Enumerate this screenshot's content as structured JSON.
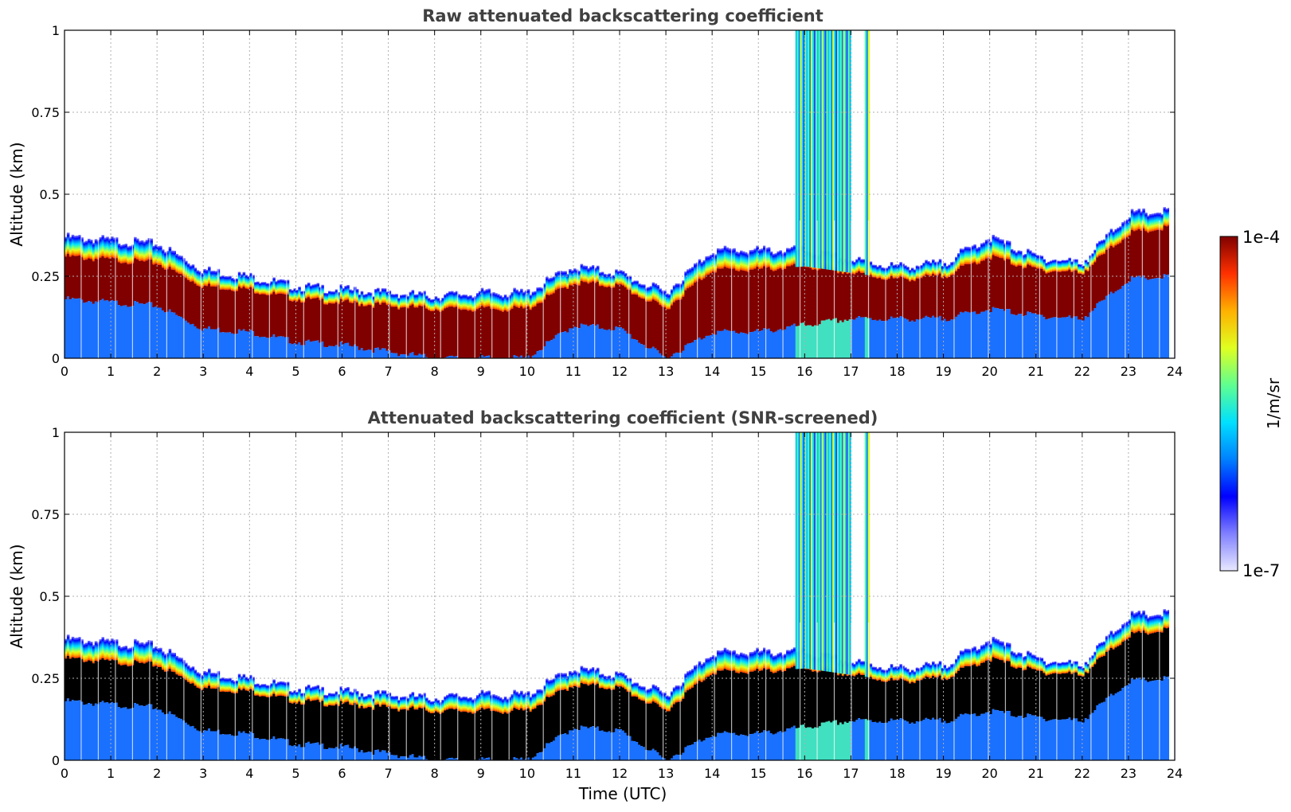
{
  "chart_data": [
    {
      "type": "heatmap",
      "title": "Raw attenuated backscattering coefficient",
      "xlabel": "",
      "ylabel": "Altitude (km)",
      "xlim": [
        0,
        24
      ],
      "ylim": [
        0,
        1
      ],
      "x_ticks": [
        "0",
        "1",
        "2",
        "3",
        "4",
        "5",
        "6",
        "7",
        "8",
        "9",
        "10",
        "11",
        "12",
        "13",
        "14",
        "15",
        "16",
        "17",
        "18",
        "19",
        "20",
        "21",
        "22",
        "23",
        "24"
      ],
      "y_ticks": [
        "0",
        "0.25",
        "0.5",
        "0.75",
        "1"
      ],
      "grid": true,
      "screened": false,
      "layer_top_km": [
        0.37,
        0.36,
        0.35,
        0.27,
        0.25,
        0.22,
        0.21,
        0.2,
        0.19,
        0.2,
        0.2,
        0.28,
        0.26,
        0.2,
        0.33,
        0.33,
        0.33,
        0.3,
        0.28,
        0.29,
        0.37,
        0.31,
        0.29,
        0.44,
        0.45
      ],
      "dense_top_km": [
        0.31,
        0.3,
        0.29,
        0.22,
        0.21,
        0.18,
        0.17,
        0.16,
        0.15,
        0.15,
        0.15,
        0.23,
        0.22,
        0.15,
        0.27,
        0.27,
        0.28,
        0.26,
        0.24,
        0.25,
        0.31,
        0.27,
        0.26,
        0.38,
        0.4
      ],
      "dense_bottom_km": [
        0.18,
        0.17,
        0.16,
        0.09,
        0.08,
        0.05,
        0.04,
        0.02,
        0.0,
        0.0,
        0.0,
        0.1,
        0.09,
        0.0,
        0.08,
        0.08,
        0.1,
        0.12,
        0.12,
        0.12,
        0.15,
        0.13,
        0.12,
        0.24,
        0.25
      ],
      "spike_periods_utc": [
        [
          15.8,
          17.0
        ],
        [
          17.3,
          17.4
        ]
      ]
    },
    {
      "type": "heatmap",
      "title": "Attenuated backscattering coefficient (SNR-screened)",
      "xlabel": "Time (UTC)",
      "ylabel": "Altitude (km)",
      "xlim": [
        0,
        24
      ],
      "ylim": [
        0,
        1
      ],
      "x_ticks": [
        "0",
        "1",
        "2",
        "3",
        "4",
        "5",
        "6",
        "7",
        "8",
        "9",
        "10",
        "11",
        "12",
        "13",
        "14",
        "15",
        "16",
        "17",
        "18",
        "19",
        "20",
        "21",
        "22",
        "23",
        "24"
      ],
      "y_ticks": [
        "0",
        "0.25",
        "0.5",
        "0.75",
        "1"
      ],
      "grid": true,
      "screened": true,
      "layer_top_km": [
        0.37,
        0.36,
        0.35,
        0.27,
        0.25,
        0.22,
        0.21,
        0.2,
        0.19,
        0.2,
        0.2,
        0.28,
        0.26,
        0.2,
        0.33,
        0.33,
        0.33,
        0.3,
        0.28,
        0.29,
        0.37,
        0.31,
        0.29,
        0.44,
        0.45
      ],
      "dense_top_km": [
        0.31,
        0.3,
        0.29,
        0.22,
        0.21,
        0.18,
        0.17,
        0.16,
        0.15,
        0.15,
        0.15,
        0.23,
        0.22,
        0.15,
        0.27,
        0.27,
        0.28,
        0.26,
        0.24,
        0.25,
        0.31,
        0.27,
        0.26,
        0.38,
        0.4
      ],
      "dense_bottom_km": [
        0.18,
        0.17,
        0.16,
        0.09,
        0.08,
        0.05,
        0.04,
        0.02,
        0.0,
        0.0,
        0.0,
        0.1,
        0.09,
        0.0,
        0.08,
        0.08,
        0.1,
        0.12,
        0.12,
        0.12,
        0.15,
        0.13,
        0.12,
        0.24,
        0.25
      ],
      "spike_periods_utc": [
        [
          15.8,
          17.0
        ],
        [
          17.3,
          17.4
        ]
      ]
    }
  ],
  "colorbar": {
    "label": "1/m/sr",
    "max_label": "1e-4",
    "min_label": "1e-7",
    "scale": "log",
    "colors": [
      "#e8e8ff",
      "#8080ff",
      "#0000ff",
      "#0080ff",
      "#00e0ff",
      "#60ff90",
      "#e0ff20",
      "#ffb000",
      "#ff3000",
      "#800000"
    ]
  }
}
